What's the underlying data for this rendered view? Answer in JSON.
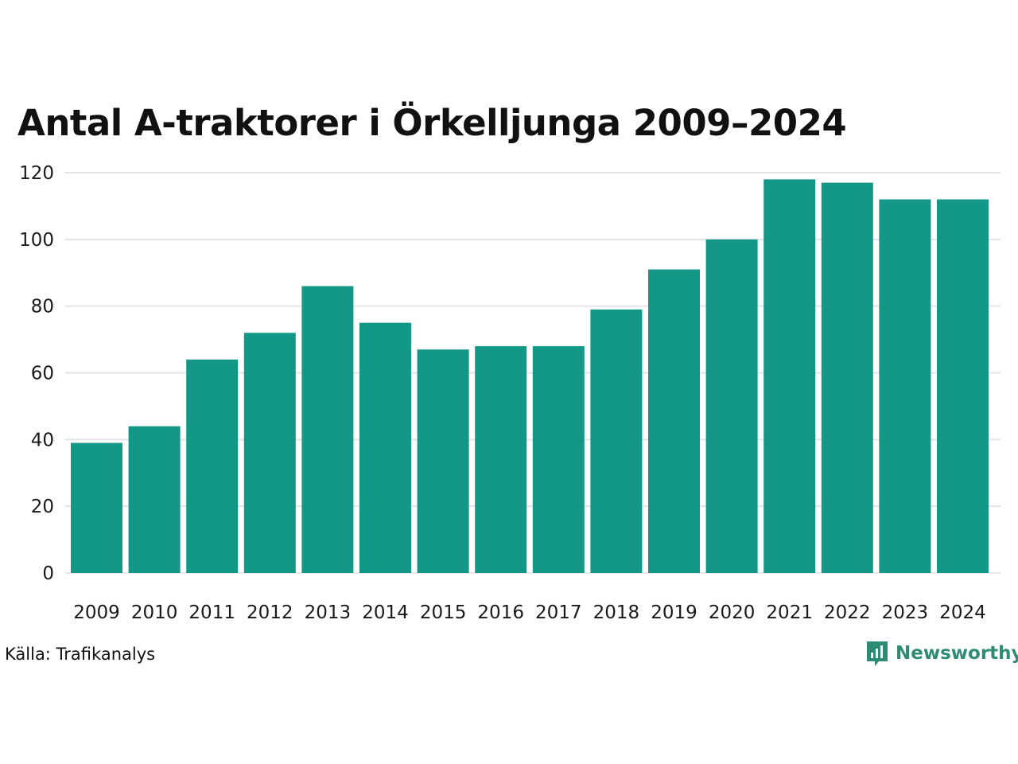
{
  "page": {
    "title": "Antal A-traktorer i Örkelljunga 2009–2024",
    "source": "Källa: Trafikanalys",
    "brand": "Newsworthy"
  },
  "colors": {
    "bar": "#139787",
    "grid": "#e3e3e8",
    "brand": "#2e8b74",
    "text": "#111111"
  },
  "chart_data": {
    "type": "bar",
    "title": "Antal A-traktorer i Örkelljunga 2009–2024",
    "xlabel": "",
    "ylabel": "",
    "categories": [
      "2009",
      "2010",
      "2011",
      "2012",
      "2013",
      "2014",
      "2015",
      "2016",
      "2017",
      "2018",
      "2019",
      "2020",
      "2021",
      "2022",
      "2023",
      "2024"
    ],
    "values": [
      39,
      44,
      64,
      72,
      86,
      75,
      67,
      68,
      68,
      79,
      91,
      100,
      118,
      117,
      112,
      112
    ],
    "ylim": [
      0,
      120
    ],
    "yticks": [
      0,
      20,
      40,
      60,
      80,
      100,
      120
    ],
    "grid": true,
    "legend": "none"
  }
}
